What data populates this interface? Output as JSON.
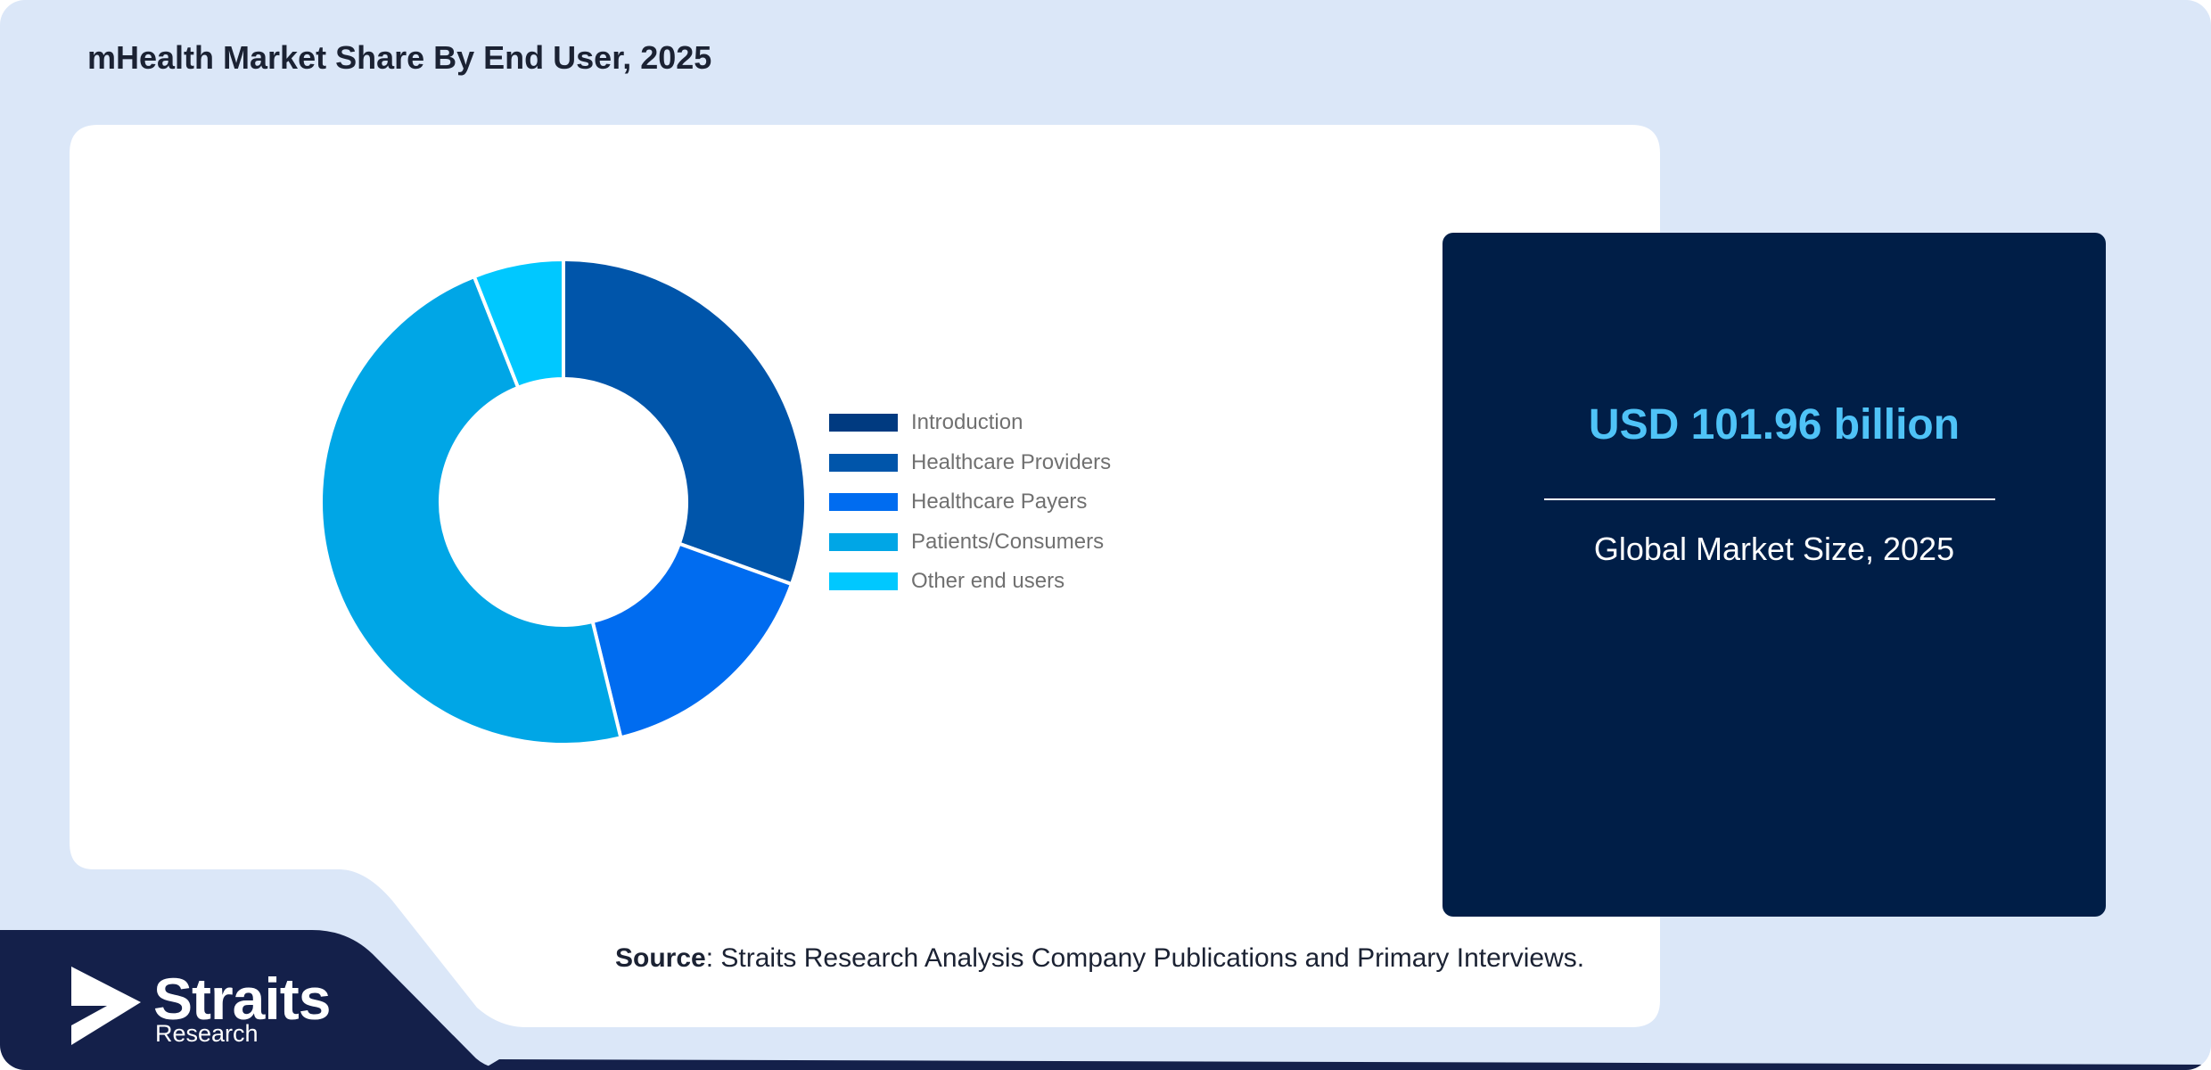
{
  "title": "mHealth Market Share By End User, 2025",
  "chart_data": {
    "type": "pie",
    "variant": "donut",
    "categories": [
      "Introduction",
      "Healthcare Providers",
      "Healthcare Payers",
      "Patients/Consumers",
      "Other end users"
    ],
    "values": [
      0,
      30.5,
      15.7,
      47.8,
      6.0
    ],
    "colors": [
      "#003a80",
      "#0055aa",
      "#006cf0",
      "#00a6e6",
      "#00c8ff"
    ],
    "legend_position": "right"
  },
  "stat_panel": {
    "value": "USD 101.96 billion",
    "label": "Global Market Size, 2025"
  },
  "source": {
    "label": "Source",
    "text": ": Straits Research Analysis Company Publications and Primary Interviews."
  },
  "logo": {
    "name": "Straits",
    "sub": "Research"
  },
  "colors": {
    "background": "#dbe7f8",
    "card": "#ffffff",
    "panel": "#001e47",
    "accent": "#4fc3f7",
    "footer_band": "#14204a"
  }
}
